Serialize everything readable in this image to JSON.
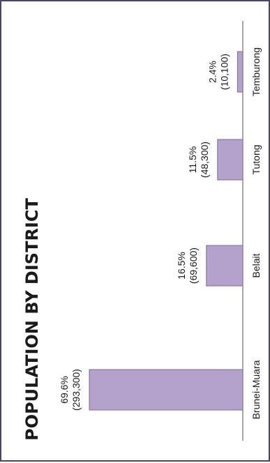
{
  "chart_data": {
    "type": "bar",
    "title": "POPULATION BY DISTRICT",
    "categories": [
      "Brunei-Muara",
      "Belait",
      "Tutong",
      "Temburong"
    ],
    "values": [
      293300,
      69600,
      48300,
      10100
    ],
    "data_labels": [
      {
        "percent": "69.6%",
        "count": "(293,300)"
      },
      {
        "percent": "16.5%",
        "count": "(69,600)"
      },
      {
        "percent": "11.5%",
        "count": "(48,300)"
      },
      {
        "percent": "2.4%",
        "count": "(10,100)"
      }
    ],
    "xlabel": "",
    "ylabel": "",
    "ylim": [
      0,
      293300
    ],
    "grid": false,
    "legend": "none",
    "orientation": "rotated-90-ccw",
    "colors": {
      "bar_fill": "#b3a3cc",
      "bar_stroke": "#7a6a99",
      "baseline": "#888888",
      "frame": "#4a4568"
    }
  }
}
